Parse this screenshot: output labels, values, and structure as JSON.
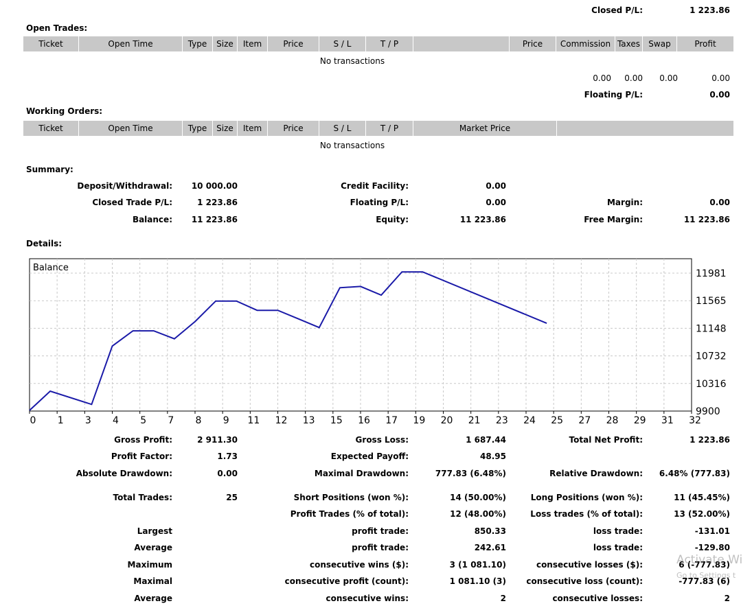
{
  "top": {
    "closed_pl_label": "Closed P/L:",
    "closed_pl_value": "1 223.86"
  },
  "open_trades": {
    "title": "Open Trades:",
    "columns": [
      "Ticket",
      "Open Time",
      "Type",
      "Size",
      "Item",
      "Price",
      "S / L",
      "T / P",
      "",
      "Price",
      "Commission",
      "Taxes",
      "Swap",
      "Profit"
    ],
    "empty_text": "No transactions",
    "totals": {
      "commission": "0.00",
      "taxes": "0.00",
      "swap": "0.00",
      "profit": "0.00"
    },
    "floating_pl_label": "Floating P/L:",
    "floating_pl_value": "0.00"
  },
  "working_orders": {
    "title": "Working Orders:",
    "columns": [
      "Ticket",
      "Open Time",
      "Type",
      "Size",
      "Item",
      "Price",
      "S / L",
      "T / P",
      "Market Price",
      ""
    ],
    "empty_text": "No transactions"
  },
  "summary": {
    "title": "Summary:",
    "deposit_label": "Deposit/Withdrawal:",
    "deposit_value": "10 000.00",
    "credit_label": "Credit Facility:",
    "credit_value": "0.00",
    "closed_label": "Closed Trade P/L:",
    "closed_value": "1 223.86",
    "floating_label": "Floating P/L:",
    "floating_value": "0.00",
    "margin_label": "Margin:",
    "margin_value": "0.00",
    "balance_label": "Balance:",
    "balance_value": "11 223.86",
    "equity_label": "Equity:",
    "equity_value": "11 223.86",
    "free_margin_label": "Free Margin:",
    "free_margin_value": "11 223.86"
  },
  "details": {
    "title": "Details:"
  },
  "chart_data": {
    "type": "line",
    "title": "Balance",
    "x_ticks": [
      "0",
      "1",
      "3",
      "4",
      "5",
      "7",
      "8",
      "9",
      "11",
      "12",
      "13",
      "15",
      "16",
      "17",
      "19",
      "20",
      "21",
      "23",
      "24",
      "25",
      "27",
      "28",
      "29",
      "31",
      "32"
    ],
    "y_ticks": [
      "11981",
      "11565",
      "11148",
      "10732",
      "10316",
      "9900"
    ],
    "ylim": [
      9900,
      11981
    ],
    "grid": true,
    "series": [
      {
        "x": [
          0,
          1,
          3,
          4,
          5,
          6,
          7,
          8,
          9,
          10,
          11,
          12,
          13,
          14,
          15,
          16,
          17,
          18,
          19,
          25
        ],
        "y": [
          9910,
          10200,
          10000,
          10880,
          11110,
          11110,
          10990,
          11250,
          11560,
          11560,
          11420,
          11420,
          11290,
          11160,
          11760,
          11780,
          11650,
          12000,
          12000,
          11224
        ]
      }
    ],
    "line_color": "#1a1aa8"
  },
  "stats": {
    "gross_profit_label": "Gross Profit:",
    "gross_profit_value": "2 911.30",
    "gross_loss_label": "Gross Loss:",
    "gross_loss_value": "1 687.44",
    "total_net_label": "Total Net Profit:",
    "total_net_value": "1 223.86",
    "profit_factor_label": "Profit Factor:",
    "profit_factor_value": "1.73",
    "expected_payoff_label": "Expected Payoff:",
    "expected_payoff_value": "48.95",
    "abs_dd_label": "Absolute Drawdown:",
    "abs_dd_value": "0.00",
    "max_dd_label": "Maximal Drawdown:",
    "max_dd_value": "777.83 (6.48%)",
    "rel_dd_label": "Relative Drawdown:",
    "rel_dd_value": "6.48% (777.83)",
    "total_trades_label": "Total Trades:",
    "total_trades_value": "25",
    "short_label": "Short Positions (won %):",
    "short_value": "14 (50.00%)",
    "long_label": "Long Positions (won %):",
    "long_value": "11 (45.45%)",
    "profit_trades_label": "Profit Trades (% of total):",
    "profit_trades_value": "12 (48.00%)",
    "loss_trades_label": "Loss trades (% of total):",
    "loss_trades_value": "13 (52.00%)",
    "largest_label": "Largest",
    "largest_profit_label": "profit trade:",
    "largest_profit_value": "850.33",
    "largest_loss_label": "loss trade:",
    "largest_loss_value": "-131.01",
    "average_label": "Average",
    "avg_profit_label": "profit trade:",
    "avg_profit_value": "242.61",
    "avg_loss_label": "loss trade:",
    "avg_loss_value": "-129.80",
    "maximum_label": "Maximum",
    "max_cons_wins_label": "consecutive wins ($):",
    "max_cons_wins_value": "3 (1 081.10)",
    "max_cons_losses_label": "consecutive losses ($):",
    "max_cons_losses_value": "6 (-777.83)",
    "maximal_label": "Maximal",
    "maximal_cons_profit_label": "consecutive profit (count):",
    "maximal_cons_profit_value": "1 081.10 (3)",
    "maximal_cons_loss_label": "consecutive loss (count):",
    "maximal_cons_loss_value": "-777.83 (6)",
    "average2_label": "Average",
    "avg_cons_wins_label": "consecutive wins:",
    "avg_cons_wins_value": "2",
    "avg_cons_losses_label": "consecutive losses:",
    "avg_cons_losses_value": "2"
  },
  "watermark": {
    "line1": "Activate Wi",
    "line2": "Go to Settings t"
  }
}
